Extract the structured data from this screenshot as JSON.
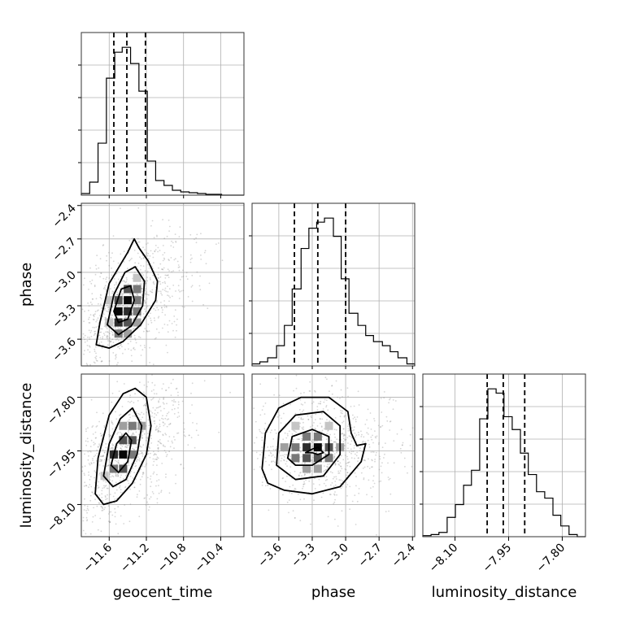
{
  "chart_data": {
    "type": "corner",
    "parameters": [
      {
        "name": "geocent_time",
        "label": "geocent_time",
        "range": [
          -11.9,
          -10.15
        ],
        "ticks": [
          -11.6,
          -11.2,
          -10.8,
          -10.4
        ],
        "tick_labels": [
          "−11.6",
          "−11.2",
          "−10.8",
          "−10.4"
        ],
        "quantiles": [
          -11.55,
          -11.41,
          -11.21
        ],
        "hist": {
          "bin_edges": [
            -11.9,
            -11.81,
            -11.72,
            -11.63,
            -11.54,
            -11.46,
            -11.37,
            -11.28,
            -11.19,
            -11.1,
            -11.01,
            -10.92,
            -10.83,
            -10.74,
            -10.65,
            -10.56,
            -10.48,
            -10.39,
            -10.3,
            -10.21,
            -10.15
          ],
          "counts": [
            1,
            8,
            32,
            72,
            88,
            91,
            81,
            64,
            21,
            9,
            6,
            3,
            2,
            1.5,
            1,
            0.5,
            0.5,
            0,
            0,
            0
          ]
        }
      },
      {
        "name": "phase",
        "label": "phase",
        "range": [
          -3.84,
          -2.38
        ],
        "ticks": [
          -3.6,
          -3.3,
          -3.0,
          -2.7,
          -2.4
        ],
        "tick_labels": [
          "−3.6",
          "−3.3",
          "−3.0",
          "−2.7",
          "−2.4"
        ],
        "quantiles": [
          -3.46,
          -3.25,
          -3.0
        ],
        "hist": {
          "bin_edges": [
            -3.84,
            -3.77,
            -3.7,
            -3.62,
            -3.55,
            -3.48,
            -3.4,
            -3.33,
            -3.26,
            -3.19,
            -3.11,
            -3.04,
            -2.97,
            -2.89,
            -2.82,
            -2.75,
            -2.67,
            -2.6,
            -2.53,
            -2.45,
            -2.38
          ],
          "counts": [
            1,
            2,
            4,
            10,
            20,
            38,
            58,
            68,
            71,
            73,
            64,
            43,
            26,
            20,
            15,
            12,
            10,
            7,
            4,
            1
          ]
        }
      },
      {
        "name": "luminosity_distance",
        "label": "luminosity_distance",
        "range": [
          -8.19,
          -7.735
        ],
        "ticks": [
          -8.1,
          -7.95,
          -7.8
        ],
        "tick_labels": [
          "−8.10",
          "−7.95",
          "−7.80"
        ],
        "quantiles": [
          -8.01,
          -7.965,
          -7.905
        ],
        "hist": {
          "bin_edges": [
            -8.19,
            -8.167,
            -8.145,
            -8.122,
            -8.099,
            -8.076,
            -8.054,
            -8.031,
            -8.008,
            -7.985,
            -7.963,
            -7.94,
            -7.917,
            -7.895,
            -7.872,
            -7.849,
            -7.826,
            -7.804,
            -7.781,
            -7.758,
            -7.735
          ],
          "counts": [
            0.5,
            1,
            2,
            9,
            15,
            24,
            31,
            55,
            69,
            67,
            56,
            50,
            39,
            29,
            21,
            18,
            10,
            5,
            1,
            0
          ]
        }
      }
    ],
    "pairs": [
      {
        "x": "geocent_time",
        "y": "phase",
        "y_ticks": [
          -2.4,
          -2.7,
          -3.0,
          -3.3,
          -3.6
        ],
        "y_tick_labels": [
          "−2.4",
          "−2.7",
          "−3.0",
          "−3.3",
          "−3.6"
        ],
        "peak": [
          -11.43,
          -3.29
        ],
        "contours": [
          [
            [
              -11.74,
              -3.65
            ],
            [
              -11.7,
              -3.45
            ],
            [
              -11.6,
              -3.1
            ],
            [
              -11.4,
              -2.82
            ],
            [
              -11.33,
              -2.7
            ],
            [
              -11.28,
              -2.78
            ],
            [
              -11.18,
              -2.9
            ],
            [
              -11.08,
              -3.08
            ],
            [
              -11.1,
              -3.25
            ],
            [
              -11.26,
              -3.47
            ],
            [
              -11.45,
              -3.62
            ],
            [
              -11.6,
              -3.68
            ]
          ],
          [
            [
              -11.62,
              -3.47
            ],
            [
              -11.55,
              -3.2
            ],
            [
              -11.43,
              -3.0
            ],
            [
              -11.32,
              -2.95
            ],
            [
              -11.22,
              -3.08
            ],
            [
              -11.24,
              -3.3
            ],
            [
              -11.36,
              -3.48
            ],
            [
              -11.5,
              -3.56
            ]
          ],
          [
            [
              -11.55,
              -3.35
            ],
            [
              -11.47,
              -3.15
            ],
            [
              -11.37,
              -3.12
            ],
            [
              -11.33,
              -3.25
            ],
            [
              -11.4,
              -3.42
            ],
            [
              -11.5,
              -3.45
            ]
          ]
        ],
        "density": [
          [
            -11.5,
            -3.55,
            3
          ],
          [
            -11.4,
            -3.55,
            2
          ],
          [
            -11.5,
            -3.45,
            5
          ],
          [
            -11.4,
            -3.45,
            4
          ],
          [
            -11.3,
            -3.45,
            2
          ],
          [
            -11.5,
            -3.35,
            6
          ],
          [
            -11.4,
            -3.35,
            5
          ],
          [
            -11.3,
            -3.35,
            3
          ],
          [
            -11.5,
            -3.25,
            4
          ],
          [
            -11.4,
            -3.25,
            6
          ],
          [
            -11.3,
            -3.25,
            3
          ],
          [
            -11.4,
            -3.15,
            4
          ],
          [
            -11.3,
            -3.15,
            3
          ],
          [
            -11.3,
            -3.05,
            1
          ],
          [
            -11.6,
            -3.25,
            1
          ],
          [
            -11.6,
            -3.45,
            1
          ]
        ]
      },
      {
        "x": "geocent_time",
        "y": "luminosity_distance",
        "y_ticks": [
          -7.8,
          -7.95,
          -8.1
        ],
        "y_tick_labels": [
          "−7.80",
          "−7.95",
          "−8.10"
        ],
        "peak": [
          -11.46,
          -7.96
        ],
        "contours": [
          [
            [
              -11.75,
              -8.07
            ],
            [
              -11.72,
              -7.97
            ],
            [
              -11.6,
              -7.85
            ],
            [
              -11.45,
              -7.79
            ],
            [
              -11.32,
              -7.775
            ],
            [
              -11.2,
              -7.8
            ],
            [
              -11.15,
              -7.88
            ],
            [
              -11.2,
              -7.96
            ],
            [
              -11.35,
              -8.04
            ],
            [
              -11.52,
              -8.09
            ],
            [
              -11.66,
              -8.1
            ]
          ],
          [
            [
              -11.66,
              -8.02
            ],
            [
              -11.6,
              -7.93
            ],
            [
              -11.48,
              -7.86
            ],
            [
              -11.35,
              -7.83
            ],
            [
              -11.25,
              -7.88
            ],
            [
              -11.3,
              -7.96
            ],
            [
              -11.42,
              -8.03
            ],
            [
              -11.56,
              -8.05
            ]
          ],
          [
            [
              -11.58,
              -7.99
            ],
            [
              -11.52,
              -7.93
            ],
            [
              -11.42,
              -7.9
            ],
            [
              -11.36,
              -7.92
            ],
            [
              -11.4,
              -7.98
            ],
            [
              -11.5,
              -8.01
            ]
          ]
        ],
        "density": [
          [
            -11.55,
            -8.0,
            3
          ],
          [
            -11.45,
            -8.0,
            4
          ],
          [
            -11.55,
            -7.96,
            5
          ],
          [
            -11.45,
            -7.96,
            6
          ],
          [
            -11.35,
            -7.96,
            3
          ],
          [
            -11.45,
            -7.92,
            4
          ],
          [
            -11.35,
            -7.92,
            4
          ],
          [
            -11.35,
            -7.88,
            3
          ],
          [
            -11.25,
            -7.88,
            2
          ],
          [
            -11.45,
            -7.88,
            2
          ],
          [
            -11.65,
            -8.02,
            1
          ]
        ]
      },
      {
        "x": "phase",
        "y": "luminosity_distance",
        "peak": [
          -3.25,
          -7.945
        ],
        "contours": [
          [
            [
              -3.75,
              -8.0
            ],
            [
              -3.72,
              -7.9
            ],
            [
              -3.6,
              -7.83
            ],
            [
              -3.4,
              -7.8
            ],
            [
              -3.15,
              -7.8
            ],
            [
              -2.98,
              -7.84
            ],
            [
              -2.95,
              -7.9
            ],
            [
              -2.9,
              -7.935
            ],
            [
              -2.82,
              -7.93
            ],
            [
              -2.86,
              -7.98
            ],
            [
              -3.05,
              -8.05
            ],
            [
              -3.3,
              -8.07
            ],
            [
              -3.55,
              -8.06
            ],
            [
              -3.7,
              -8.04
            ]
          ],
          [
            [
              -3.62,
              -7.99
            ],
            [
              -3.6,
              -7.9
            ],
            [
              -3.45,
              -7.85
            ],
            [
              -3.2,
              -7.84
            ],
            [
              -3.05,
              -7.88
            ],
            [
              -3.05,
              -7.96
            ],
            [
              -3.2,
              -8.02
            ],
            [
              -3.45,
              -8.03
            ]
          ],
          [
            [
              -3.52,
              -7.97
            ],
            [
              -3.48,
              -7.91
            ],
            [
              -3.3,
              -7.89
            ],
            [
              -3.15,
              -7.91
            ],
            [
              -3.15,
              -7.96
            ],
            [
              -3.3,
              -7.99
            ],
            [
              -3.45,
              -7.99
            ]
          ],
          [
            [
              -3.36,
              -7.955
            ],
            [
              -3.3,
              -7.945
            ],
            [
              -3.25,
              -7.94
            ],
            [
              -3.2,
              -7.955
            ],
            [
              -3.25,
              -7.96
            ],
            [
              -3.3,
              -7.955
            ]
          ]
        ],
        "density": [
          [
            -3.45,
            -7.97,
            3
          ],
          [
            -3.35,
            -7.97,
            4
          ],
          [
            -3.25,
            -7.97,
            4
          ],
          [
            -3.15,
            -7.97,
            3
          ],
          [
            -3.45,
            -7.94,
            3
          ],
          [
            -3.35,
            -7.94,
            5
          ],
          [
            -3.25,
            -7.94,
            6
          ],
          [
            -3.15,
            -7.94,
            4
          ],
          [
            -3.35,
            -7.91,
            3
          ],
          [
            -3.25,
            -7.91,
            3
          ],
          [
            -3.55,
            -7.94,
            2
          ],
          [
            -3.05,
            -7.94,
            2
          ],
          [
            -3.35,
            -8.0,
            2
          ],
          [
            -3.25,
            -8.0,
            2
          ],
          [
            -3.45,
            -7.88,
            1
          ],
          [
            -3.15,
            -7.88,
            1
          ]
        ]
      }
    ],
    "grid": true
  }
}
